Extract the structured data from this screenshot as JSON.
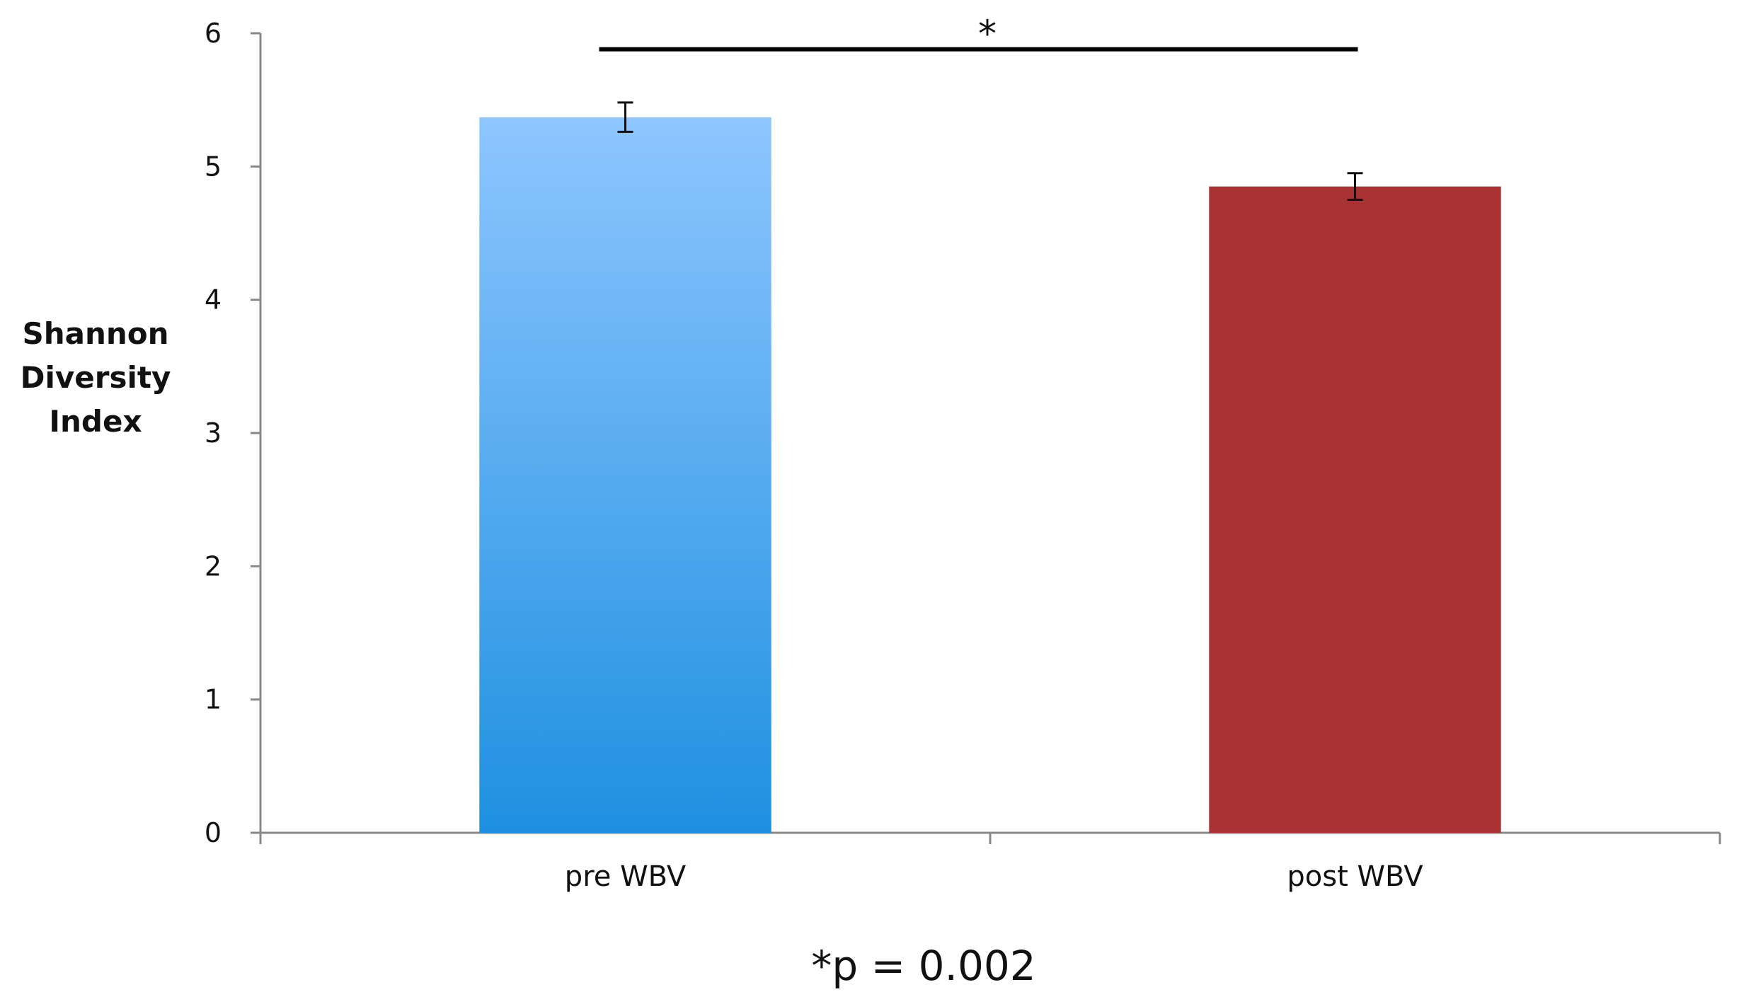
{
  "chart_data": {
    "type": "bar",
    "categories": [
      "pre WBV",
      "post WBV"
    ],
    "values": [
      5.37,
      4.85
    ],
    "error": [
      0.11,
      0.1
    ],
    "bar_colors": [
      "#1e90e0",
      "#a83232"
    ],
    "bar_gradient_top": "#8ec6ff",
    "ylabel_lines": [
      "Shannon",
      "Diversity",
      "Index"
    ],
    "yticks": [
      "0",
      "1",
      "2",
      "3",
      "4",
      "5",
      "6"
    ],
    "ylim": [
      0,
      6
    ],
    "grid": false,
    "significance": {
      "marker": "*",
      "between": [
        "pre WBV",
        "post WBV"
      ],
      "level": 5.88
    },
    "annotation": "*p = 0.002"
  }
}
